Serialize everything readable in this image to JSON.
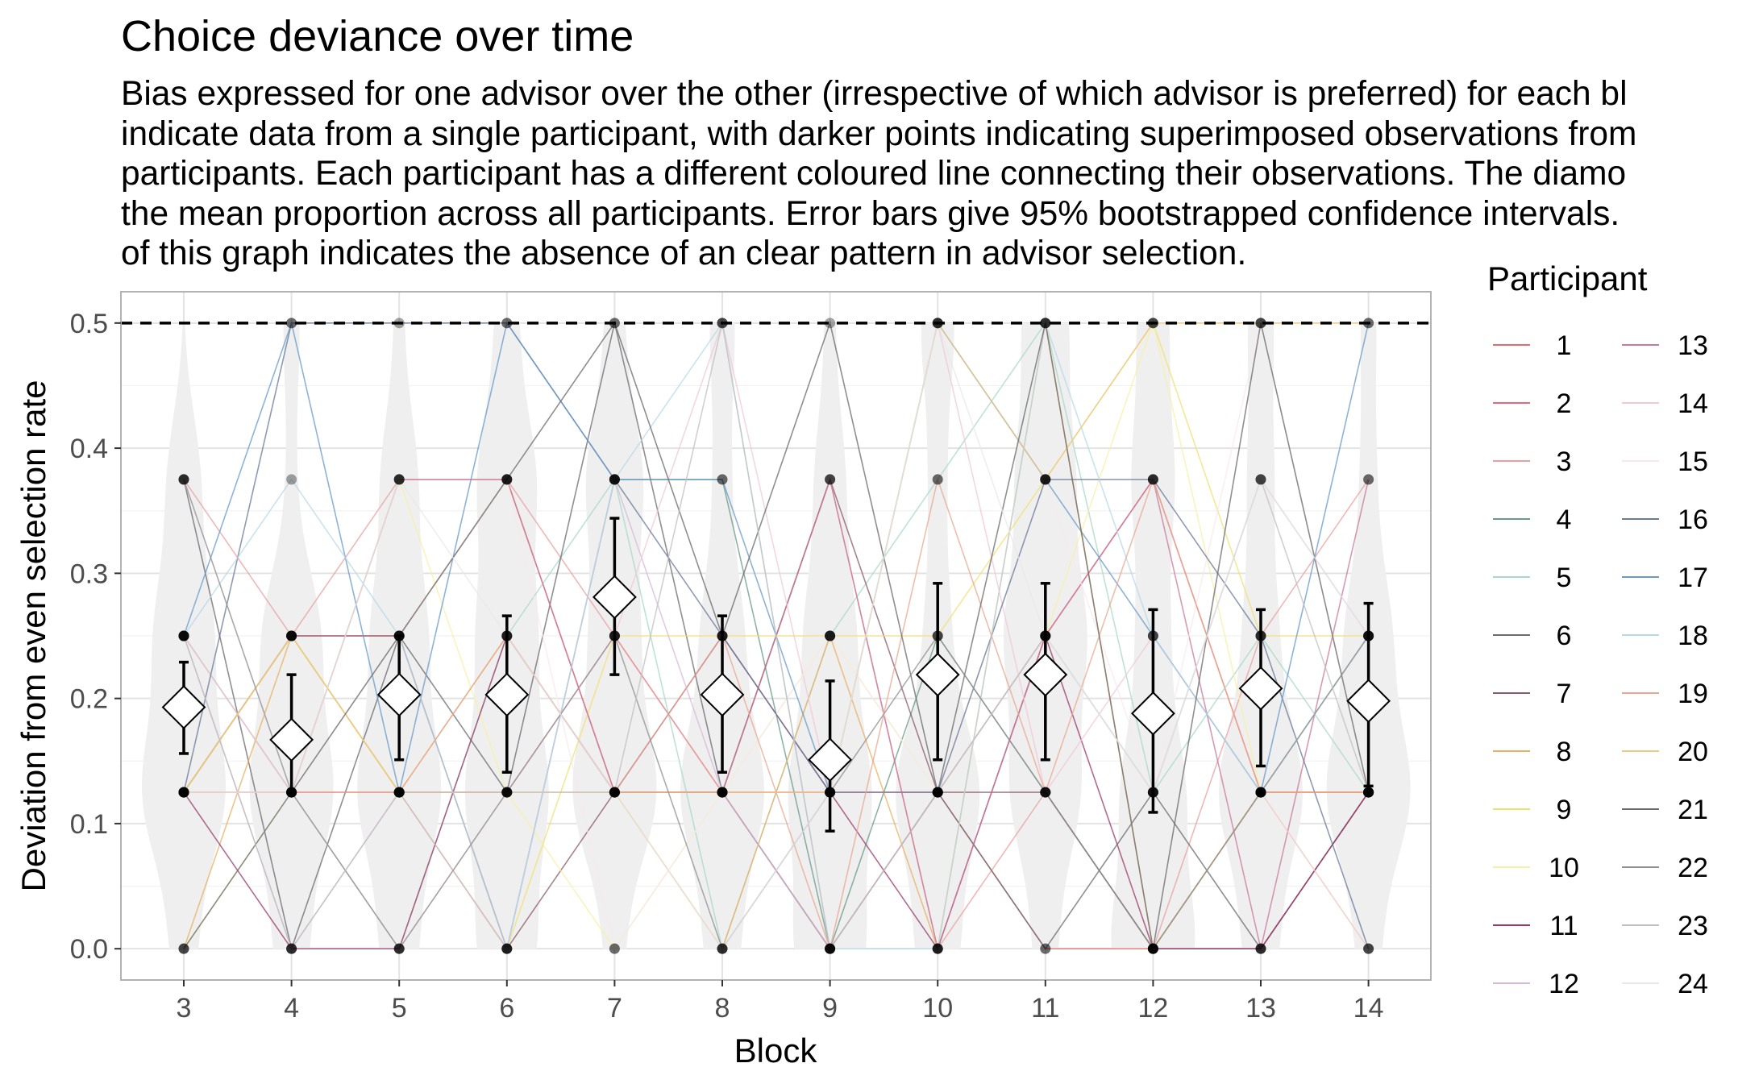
{
  "chart_data": {
    "type": "scatter",
    "title": "Choice deviance over time",
    "subtitle_lines": [
      "Bias expressed for one advisor over the other (irrespective of which advisor is preferred) for each bl",
      "indicate data from a single participant, with darker points indicating superimposed observations from",
      "participants. Each participant has a different coloured line connecting their observations. The diamo",
      "the mean proportion across all participants. Error bars give 95% bootstrapped confidence intervals.",
      "of this graph indicates the absence of an clear pattern in advisor selection."
    ],
    "xlabel": "Block",
    "ylabel": "Deviation from even selection rate",
    "categories": [
      "3",
      "4",
      "5",
      "6",
      "7",
      "8",
      "9",
      "10",
      "11",
      "12",
      "13",
      "14"
    ],
    "y_ticks": [
      "0.0",
      "0.1",
      "0.2",
      "0.3",
      "0.4",
      "0.5"
    ],
    "ylim": [
      -0.025,
      0.525
    ],
    "reference_line": {
      "y": 0.5,
      "style": "dashed"
    },
    "grid": true,
    "legend": {
      "title": "Participant",
      "placement": "right",
      "labels": [
        "1",
        "2",
        "3",
        "4",
        "5",
        "6",
        "7",
        "8",
        "9",
        "10",
        "11",
        "12",
        "13",
        "14",
        "15",
        "16",
        "17",
        "18",
        "19",
        "20",
        "21",
        "22",
        "23",
        "24"
      ],
      "colors": [
        "#e86a6a",
        "#e8687a",
        "#e8a0a0",
        "#6a9a8a",
        "#a8d8c8",
        "#6a6a70",
        "#8a5a6a",
        "#e8b060",
        "#f0e070",
        "#f5f0a8",
        "#9a3a6a",
        "#d8b8d8",
        "#c87a9a",
        "#f0c8d8",
        "#f8e8ec",
        "#6a7a9a",
        "#6a9ac8",
        "#b8d8e8",
        "#e8a890",
        "#f0c880",
        "#6a6a6a",
        "#909090",
        "#c0c0c0",
        "#e8e8e8"
      ]
    },
    "means": [
      0.193,
      0.167,
      0.203,
      0.203,
      0.281,
      0.203,
      0.151,
      0.219,
      0.219,
      0.188,
      0.208,
      0.198
    ],
    "ci_low": [
      0.156,
      0.125,
      0.151,
      0.141,
      0.219,
      0.141,
      0.094,
      0.151,
      0.151,
      0.109,
      0.146,
      0.13
    ],
    "ci_high": [
      0.229,
      0.219,
      0.25,
      0.266,
      0.344,
      0.266,
      0.214,
      0.292,
      0.292,
      0.271,
      0.271,
      0.276
    ],
    "participants": [
      [
        0.125,
        0.25,
        0.25,
        0.375,
        0.125,
        0.125,
        0.0,
        0.125,
        0.0,
        0.0,
        0.125,
        0.125
      ],
      [
        0.25,
        0.125,
        0.125,
        0.125,
        0.25,
        0.125,
        0.125,
        0.125,
        0.25,
        0.375,
        0.125,
        0.125
      ],
      [
        0.375,
        0.25,
        0.375,
        0.375,
        0.25,
        0.125,
        0.375,
        0.0,
        0.125,
        0.0,
        0.25,
        0.375
      ],
      [
        0.125,
        0.25,
        0.125,
        0.0,
        0.375,
        0.375,
        0.0,
        0.25,
        0.125,
        0.0,
        0.125,
        0.25
      ],
      [
        0.25,
        0.125,
        0.0,
        0.25,
        0.375,
        0.0,
        0.25,
        0.375,
        0.5,
        0.125,
        0.25,
        0.125
      ],
      [
        0.375,
        0.0,
        0.25,
        0.125,
        0.5,
        0.125,
        0.0,
        0.125,
        0.0,
        0.125,
        0.0,
        0.125
      ],
      [
        0.125,
        0.25,
        0.25,
        0.0,
        0.125,
        0.125,
        0.375,
        0.125,
        0.125,
        0.0,
        0.0,
        0.125
      ],
      [
        0.0,
        0.25,
        0.125,
        0.25,
        0.125,
        0.0,
        0.25,
        0.0,
        0.5,
        0.0,
        0.125,
        0.125
      ],
      [
        0.125,
        0.25,
        0.125,
        0.0,
        0.25,
        0.25,
        0.25,
        0.25,
        0.375,
        0.5,
        0.25,
        0.25
      ],
      [
        0.0,
        0.125,
        0.375,
        0.125,
        0.0,
        0.125,
        0.25,
        0.125,
        0.25,
        0.5,
        0.125,
        0.0
      ],
      [
        0.125,
        0.0,
        0.0,
        0.25,
        0.125,
        0.25,
        0.125,
        0.0,
        0.25,
        0.0,
        0.0,
        0.125
      ],
      [
        0.25,
        0.0,
        0.125,
        0.0,
        0.375,
        0.125,
        0.0,
        0.125,
        0.25,
        0.125,
        0.375,
        0.25
      ],
      [
        0.125,
        0.125,
        0.375,
        0.375,
        0.125,
        0.125,
        0.375,
        0.0,
        0.25,
        0.375,
        0.0,
        0.375
      ],
      [
        0.25,
        0.125,
        0.0,
        0.125,
        0.25,
        0.5,
        0.125,
        0.5,
        0.125,
        0.25,
        0.125,
        0.0
      ],
      [
        0.375,
        0.125,
        0.25,
        0.375,
        0.0,
        0.125,
        0.25,
        0.125,
        0.375,
        0.125,
        0.5,
        0.125
      ],
      [
        0.125,
        0.5,
        0.5,
        0.5,
        0.375,
        0.25,
        0.125,
        0.125,
        0.375,
        0.375,
        0.25,
        0.0
      ],
      [
        0.25,
        0.5,
        0.125,
        0.5,
        0.375,
        0.375,
        0.125,
        0.5,
        0.375,
        0.25,
        0.125,
        0.5
      ],
      [
        0.25,
        0.375,
        0.25,
        0.0,
        0.375,
        0.5,
        0.0,
        0.0,
        0.5,
        0.25,
        0.125,
        0.25
      ],
      [
        0.125,
        0.125,
        0.125,
        0.25,
        0.125,
        0.25,
        0.0,
        0.375,
        0.125,
        0.375,
        0.125,
        0.125
      ],
      [
        0.125,
        0.25,
        0.125,
        0.125,
        0.125,
        0.125,
        0.125,
        0.5,
        0.375,
        0.5,
        0.5,
        0.5
      ],
      [
        0.0,
        0.125,
        0.25,
        0.375,
        0.5,
        0.25,
        0.5,
        0.125,
        0.5,
        0.0,
        0.5,
        0.125
      ],
      [
        0.375,
        0.125,
        0.0,
        0.125,
        0.25,
        0.0,
        0.125,
        0.25,
        0.125,
        0.0,
        0.125,
        0.25
      ],
      [
        0.25,
        0.0,
        0.125,
        0.125,
        0.125,
        0.5,
        0.0,
        0.125,
        0.25,
        0.125,
        0.375,
        0.125
      ],
      [
        0.125,
        0.125,
        0.375,
        0.25,
        0.125,
        0.0,
        0.125,
        0.5,
        0.25,
        0.125,
        0.375,
        0.25
      ]
    ]
  }
}
